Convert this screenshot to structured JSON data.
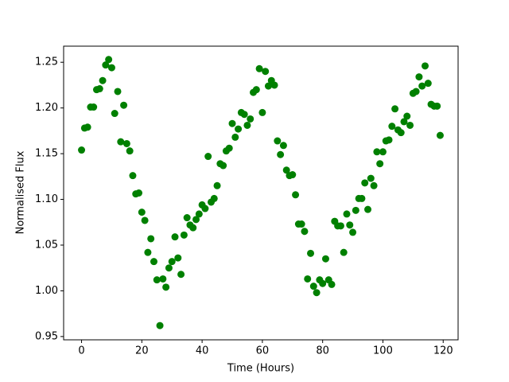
{
  "chart_data": {
    "type": "scatter",
    "xlabel": "Time (Hours)",
    "ylabel": "Normalised Flux",
    "color": "#008000",
    "x": [
      0,
      1,
      2,
      3,
      4,
      5,
      6,
      7,
      8,
      9,
      10,
      11,
      12,
      13,
      14,
      15,
      16,
      17,
      18,
      19,
      20,
      21,
      22,
      23,
      24,
      25,
      26,
      27,
      28,
      29,
      30,
      31,
      32,
      33,
      34,
      35,
      36,
      37,
      38,
      39,
      40,
      41,
      42,
      43,
      44,
      45,
      46,
      47,
      48,
      49,
      50,
      51,
      52,
      53,
      54,
      55,
      56,
      57,
      58,
      59,
      60,
      61,
      62,
      63,
      64,
      65,
      66,
      67,
      68,
      69,
      70,
      71,
      72,
      73,
      74,
      75,
      76,
      77,
      78,
      79,
      80,
      81,
      82,
      83,
      84,
      85,
      86,
      87,
      88,
      89,
      90,
      91,
      92,
      93,
      94,
      95,
      96,
      97,
      98,
      99,
      100,
      101,
      102,
      103,
      104,
      105,
      106,
      107,
      108,
      109,
      110,
      111,
      112,
      113,
      114,
      115,
      116,
      117,
      118,
      119
    ],
    "values": [
      1.154,
      1.178,
      1.179,
      1.201,
      1.201,
      1.22,
      1.221,
      1.23,
      1.247,
      1.253,
      1.244,
      1.194,
      1.218,
      1.163,
      1.203,
      1.161,
      1.153,
      1.126,
      1.106,
      1.107,
      1.086,
      1.077,
      1.042,
      1.057,
      1.032,
      1.012,
      0.962,
      1.013,
      1.004,
      1.025,
      1.032,
      1.059,
      1.036,
      1.018,
      1.061,
      1.08,
      1.072,
      1.069,
      1.078,
      1.084,
      1.094,
      1.09,
      1.147,
      1.097,
      1.101,
      1.115,
      1.139,
      1.137,
      1.153,
      1.156,
      1.183,
      1.168,
      1.177,
      1.195,
      1.193,
      1.181,
      1.188,
      1.217,
      1.22,
      1.243,
      1.195,
      1.24,
      1.224,
      1.23,
      1.225,
      1.164,
      1.149,
      1.159,
      1.132,
      1.126,
      1.127,
      1.105,
      1.073,
      1.073,
      1.065,
      1.013,
      1.041,
      1.005,
      0.998,
      1.012,
      1.008,
      1.035,
      1.012,
      1.007,
      1.076,
      1.071,
      1.071,
      1.042,
      1.084,
      1.072,
      1.064,
      1.088,
      1.101,
      1.101,
      1.118,
      1.089,
      1.123,
      1.115,
      1.152,
      1.139,
      1.152,
      1.164,
      1.165,
      1.18,
      1.199,
      1.176,
      1.173,
      1.185,
      1.191,
      1.181,
      1.216,
      1.218,
      1.234,
      1.224,
      1.246,
      1.227,
      1.204,
      1.202,
      1.202,
      1.17
    ],
    "xlim": [
      -5.95,
      124.95
    ],
    "xticks": [
      0,
      20,
      40,
      60,
      80,
      100,
      120
    ],
    "ylim": [
      0.9464,
      1.2676
    ],
    "yticks": [
      0.95,
      {
        "value": 1.0,
        "label": "1.00"
      },
      1.05,
      {
        "value": 1.1,
        "label": "1.10"
      },
      1.15,
      {
        "value": 1.2,
        "label": "1.20"
      },
      1.25
    ]
  }
}
